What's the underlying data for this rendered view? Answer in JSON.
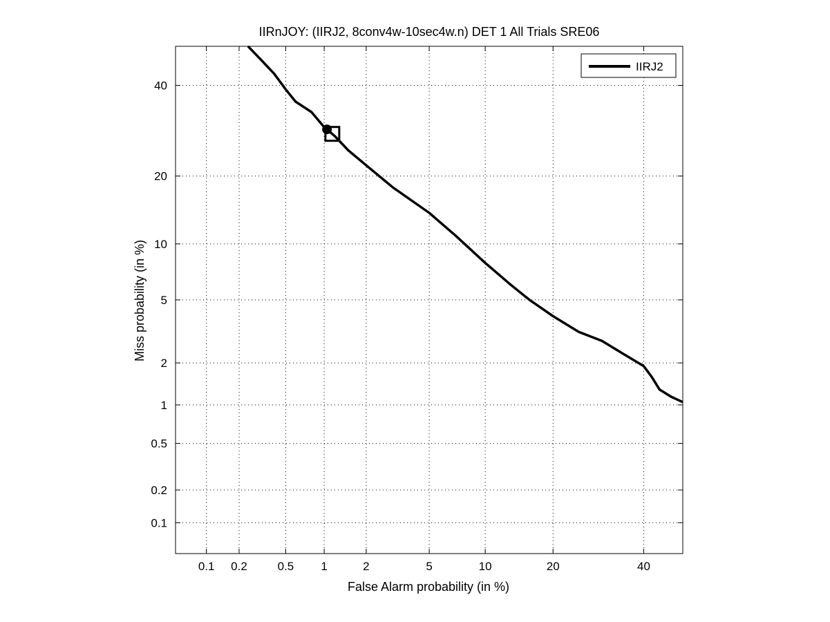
{
  "chart_data": {
    "type": "line",
    "title": "IIRnJOY: (IIRJ2, 8conv4w-10sec4w.n) DET 1 All Trials SRE06",
    "xlabel": "False Alarm probability (in %)",
    "ylabel": "Miss probability (in %)",
    "x_scale": "probit",
    "y_scale": "probit",
    "xlim": [
      0.05,
      50
    ],
    "ylim": [
      0.05,
      50
    ],
    "x_ticks": [
      0.1,
      0.2,
      0.5,
      1,
      2,
      5,
      10,
      20,
      40
    ],
    "x_tick_labels": [
      "0.1",
      "0.2",
      "0.5",
      "1",
      "2",
      "5",
      "10",
      "20",
      "40"
    ],
    "y_ticks": [
      0.1,
      0.2,
      0.5,
      1,
      2,
      5,
      10,
      20,
      40
    ],
    "y_tick_labels": [
      "0.1",
      "0.2",
      "0.5",
      "1",
      "2",
      "5",
      "10",
      "20",
      "40"
    ],
    "grid": true,
    "legend_position": "top-right",
    "series": [
      {
        "name": "IIRJ2",
        "color": "#000000",
        "x": [
          0.24,
          0.3,
          0.4,
          0.5,
          0.6,
          0.8,
          1.0,
          1.2,
          1.5,
          2.0,
          3.0,
          5.0,
          7.0,
          10.0,
          13.0,
          16.0,
          20.0,
          25.0,
          30.0,
          35.0,
          40.0,
          42.0,
          44.0,
          47.0,
          50.0
        ],
        "y": [
          50.0,
          47.0,
          43.0,
          39.0,
          36.0,
          33.5,
          30.0,
          28.0,
          25.0,
          22.0,
          18.0,
          14.0,
          11.0,
          8.0,
          6.2,
          5.0,
          4.0,
          3.2,
          2.8,
          2.3,
          1.9,
          1.6,
          1.3,
          1.15,
          1.05
        ]
      }
    ],
    "markers": [
      {
        "shape": "circle",
        "x": 1.05,
        "y": 29.5
      },
      {
        "shape": "square",
        "x": 1.15,
        "y": 28.5
      }
    ]
  }
}
